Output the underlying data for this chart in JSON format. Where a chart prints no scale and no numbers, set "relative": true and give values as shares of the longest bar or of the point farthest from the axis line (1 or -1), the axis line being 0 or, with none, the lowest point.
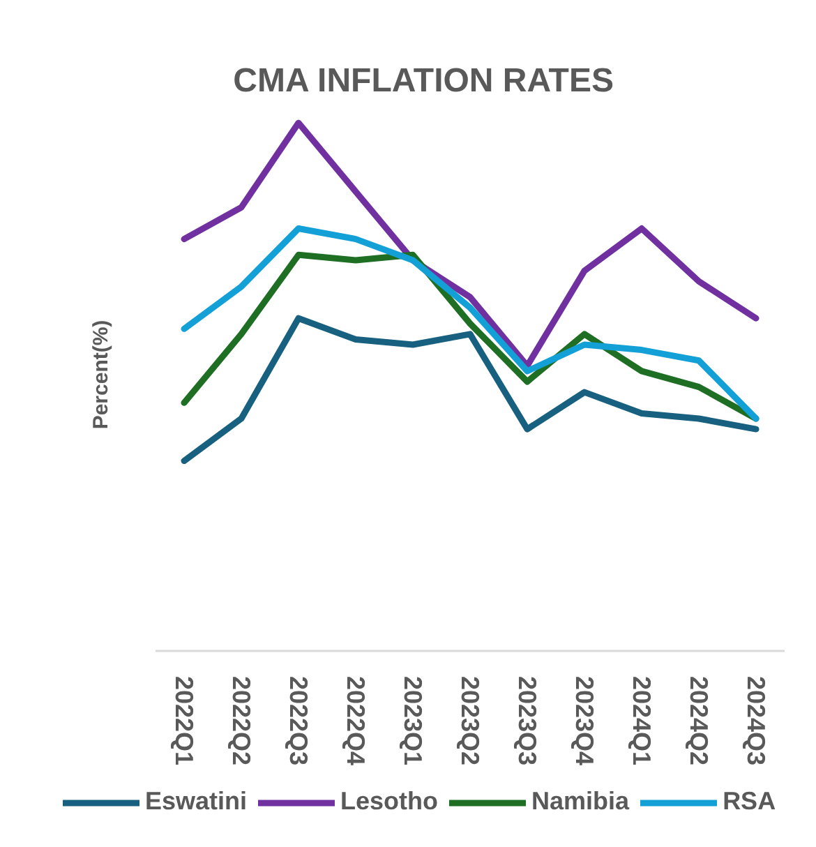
{
  "chart_data": {
    "type": "line",
    "title": "CMA INFLATION RATES",
    "ylabel": "Percent(%)",
    "relative": true,
    "legend": "bottom",
    "categories": [
      "2022Q1",
      "2022Q2",
      "2022Q3",
      "2022Q4",
      "2023Q1",
      "2023Q2",
      "2023Q3",
      "2023Q4",
      "2024Q1",
      "2024Q2",
      "2024Q3"
    ],
    "series": [
      {
        "name": "Eswatini",
        "color": "#18607f",
        "values": [
          0.36,
          0.44,
          0.63,
          0.59,
          0.58,
          0.6,
          0.42,
          0.49,
          0.45,
          0.44,
          0.42
        ]
      },
      {
        "name": "Lesotho",
        "color": "#7030a0",
        "values": [
          0.78,
          0.84,
          1.0,
          0.87,
          0.74,
          0.67,
          0.54,
          0.72,
          0.8,
          0.7,
          0.63
        ]
      },
      {
        "name": "Namibia",
        "color": "#1e6e23",
        "values": [
          0.47,
          0.6,
          0.75,
          0.74,
          0.75,
          0.62,
          0.51,
          0.6,
          0.53,
          0.5,
          0.44
        ]
      },
      {
        "name": "RSA",
        "color": "#12a0d7",
        "values": [
          0.61,
          0.69,
          0.8,
          0.78,
          0.74,
          0.65,
          0.53,
          0.58,
          0.57,
          0.55,
          0.44
        ]
      }
    ]
  }
}
